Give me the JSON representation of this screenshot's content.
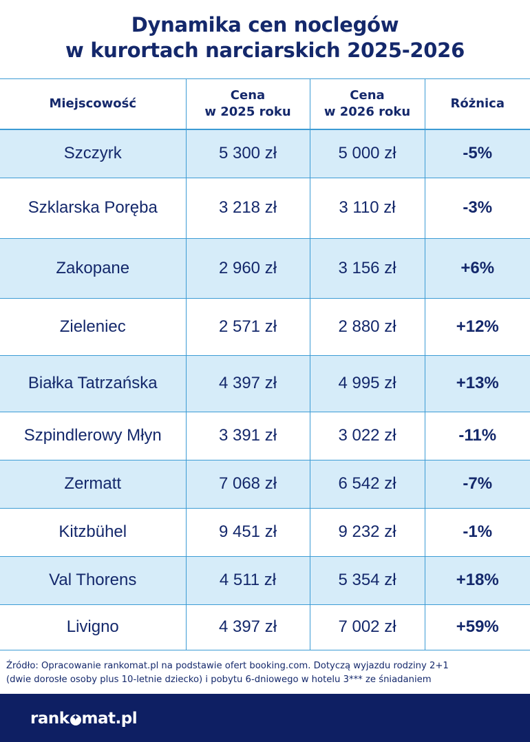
{
  "title": {
    "line1": "Dynamika cen noclegów",
    "line2": "w kurortach narciarskich 2025-2026"
  },
  "table": {
    "headers": [
      {
        "line1": "Miejscowość",
        "line2": ""
      },
      {
        "line1": "Cena",
        "line2": "w 2025 roku"
      },
      {
        "line1": "Cena",
        "line2": "w 2026 roku"
      },
      {
        "line1": "Różnica",
        "line2": ""
      }
    ],
    "rows": [
      {
        "place": "Szczyrk",
        "price_2025": "5 300 zł",
        "price_2026": "5 000 zł",
        "diff": "-5%"
      },
      {
        "place": "Szklarska Poręba",
        "price_2025": "3 218 zł",
        "price_2026": "3 110 zł",
        "diff": "-3%"
      },
      {
        "place": "Zakopane",
        "price_2025": "2 960 zł",
        "price_2026": "3 156 zł",
        "diff": "+6%"
      },
      {
        "place": "Zieleniec",
        "price_2025": "2 571 zł",
        "price_2026": "2 880 zł",
        "diff": "+12%"
      },
      {
        "place": "Białka Tatrzańska",
        "price_2025": "4 397 zł",
        "price_2026": "4 995 zł",
        "diff": "+13%"
      },
      {
        "place": "Szpindlerowy Młyn",
        "price_2025": "3 391 zł",
        "price_2026": "3 022 zł",
        "diff": "-11%"
      },
      {
        "place": "Zermatt",
        "price_2025": "7 068 zł",
        "price_2026": "6 542 zł",
        "diff": "-7%"
      },
      {
        "place": "Kitzbühel",
        "price_2025": "9 451 zł",
        "price_2026": "9 232 zł",
        "diff": "-1%"
      },
      {
        "place": "Val Thorens",
        "price_2025": "4 511 zł",
        "price_2026": "5 354 zł",
        "diff": "+18%"
      },
      {
        "place": "Livigno",
        "price_2025": "4 397 zł",
        "price_2026": "7 002 zł",
        "diff": "+59%"
      }
    ]
  },
  "source": {
    "line1": "Źródło: Opracowanie rankomat.pl na podstawie ofert booking.com. Dotyczą wyjazdu rodziny 2+1",
    "line2": "(dwie dorosłe osoby plus 10-letnie dziecko) i pobytu 6-dniowego w hotelu 3*** ze śniadaniem"
  },
  "footer": {
    "logo_left": "rank",
    "logo_right": "mat.pl",
    "logo_icon": "star-circle-icon"
  },
  "colors": {
    "navy": "#14286b",
    "footer_bg": "#0e1f63",
    "row_shade": "#d6ecf9",
    "border": "#3b9bd4"
  }
}
